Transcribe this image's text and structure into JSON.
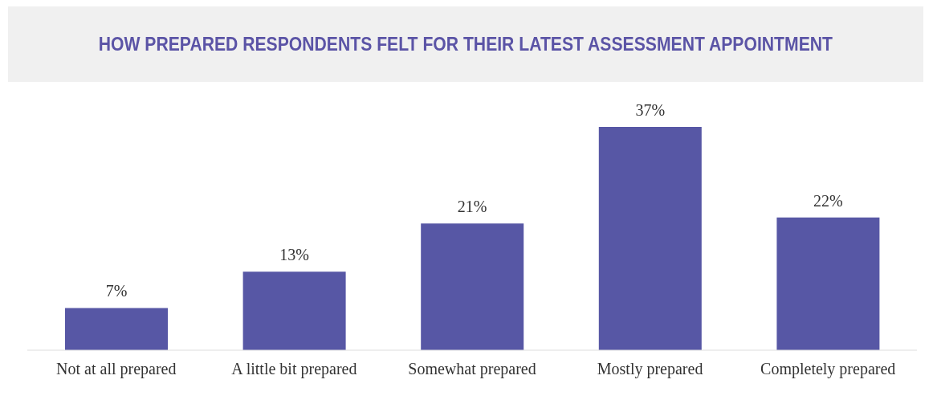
{
  "chart_data": {
    "type": "bar",
    "title": "HOW PREPARED RESPONDENTS FELT FOR THEIR LATEST ASSESSMENT APPOINTMENT",
    "categories": [
      "Not at all prepared",
      "A little bit prepared",
      "Somewhat prepared",
      "Mostly prepared",
      "Completely prepared"
    ],
    "values": [
      7,
      13,
      21,
      37,
      22
    ],
    "value_labels": [
      "7%",
      "13%",
      "21%",
      "37%",
      "22%"
    ],
    "color": "#5757a5"
  }
}
